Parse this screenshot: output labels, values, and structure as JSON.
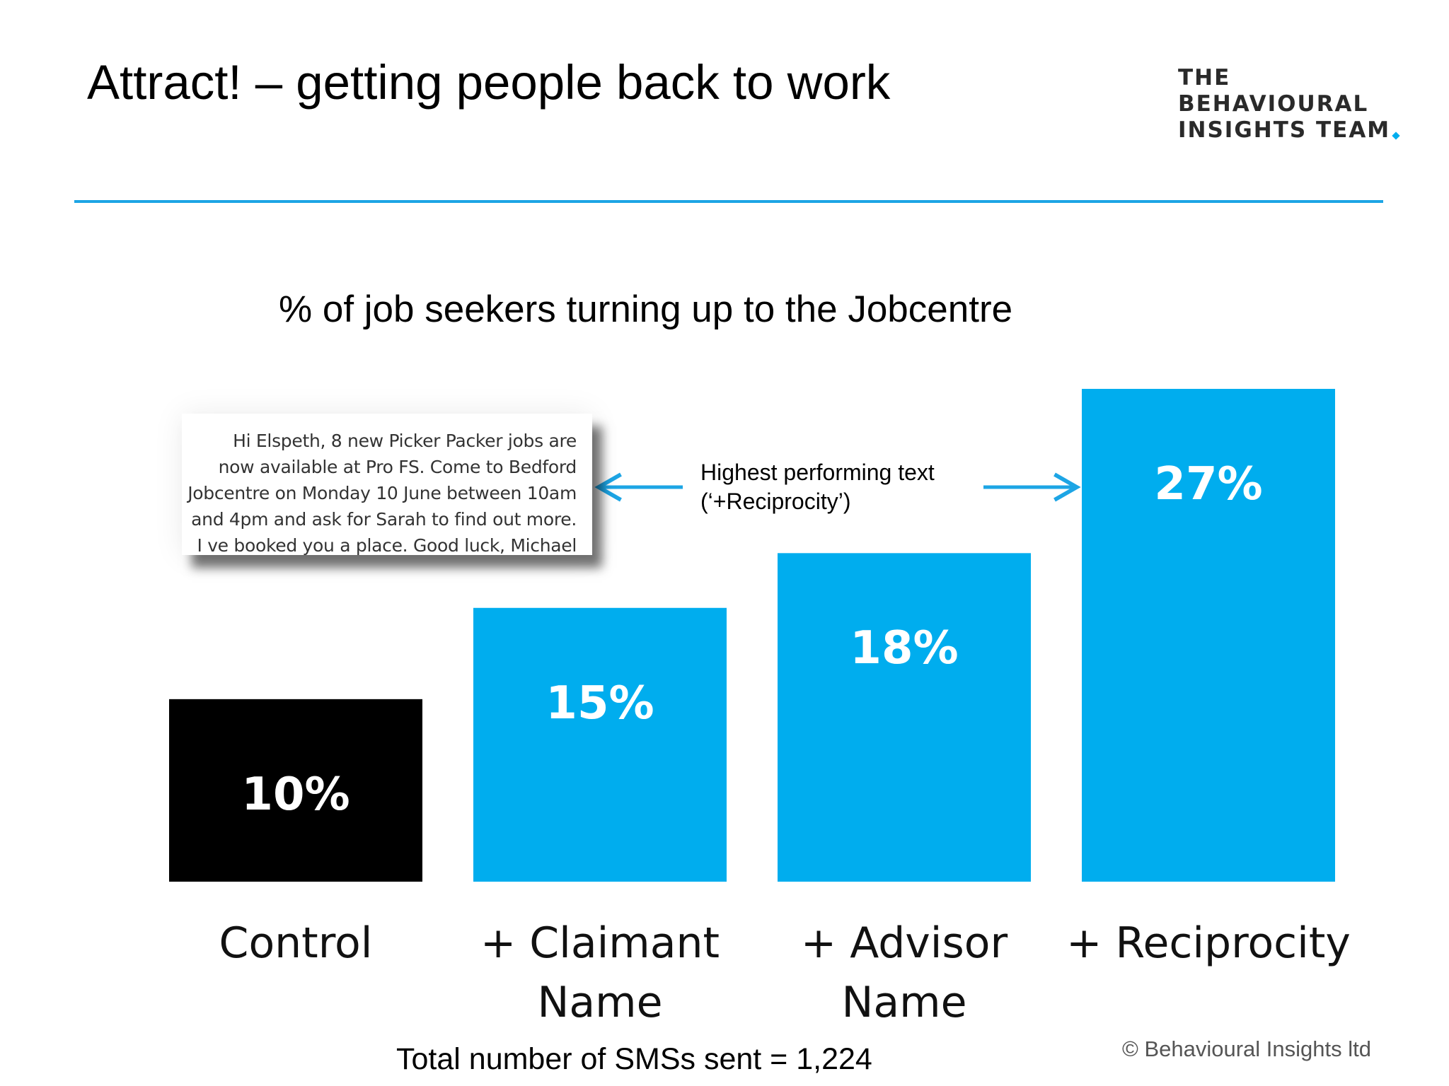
{
  "header": {
    "title": "Attract! – getting people back to work",
    "logo_lines": [
      "THE",
      "BEHAVIOURAL",
      "INSIGHTS TEAM"
    ]
  },
  "sms_example": {
    "text": "Hi Elspeth, 8 new Picker Packer jobs are\nnow available at Pro FS. Come to Bedford\nJobcentre on Monday 10 June between 10am\nand 4pm and ask for Sarah to find out more.\nI ve booked you a place. Good luck, Michael"
  },
  "annotation": {
    "line1": "Highest performing text",
    "line2": "(‘+Reciprocity’)"
  },
  "chart_data": {
    "type": "bar",
    "title": "% of job seekers turning up to the Jobcentre",
    "categories": [
      "Control",
      "+ Claimant\nName",
      "+ Advisor\nName",
      "+ Reciprocity"
    ],
    "values": [
      10,
      15,
      18,
      27
    ],
    "data_labels": [
      "10%",
      "15%",
      "18%",
      "27%"
    ],
    "unit": "%",
    "bar_colors": [
      "#000000",
      "#00adee",
      "#00adee",
      "#00adee"
    ],
    "ylim": [
      0,
      27
    ],
    "grid": false,
    "legend": "none",
    "xlabel": "",
    "ylabel": ""
  },
  "footer": {
    "total_sms": "Total number of SMSs sent = 1,224",
    "copyright": "© Behavioural Insights ltd"
  },
  "colors": {
    "accent": "#00adee",
    "rule": "#1da5e5",
    "control": "#000000"
  }
}
